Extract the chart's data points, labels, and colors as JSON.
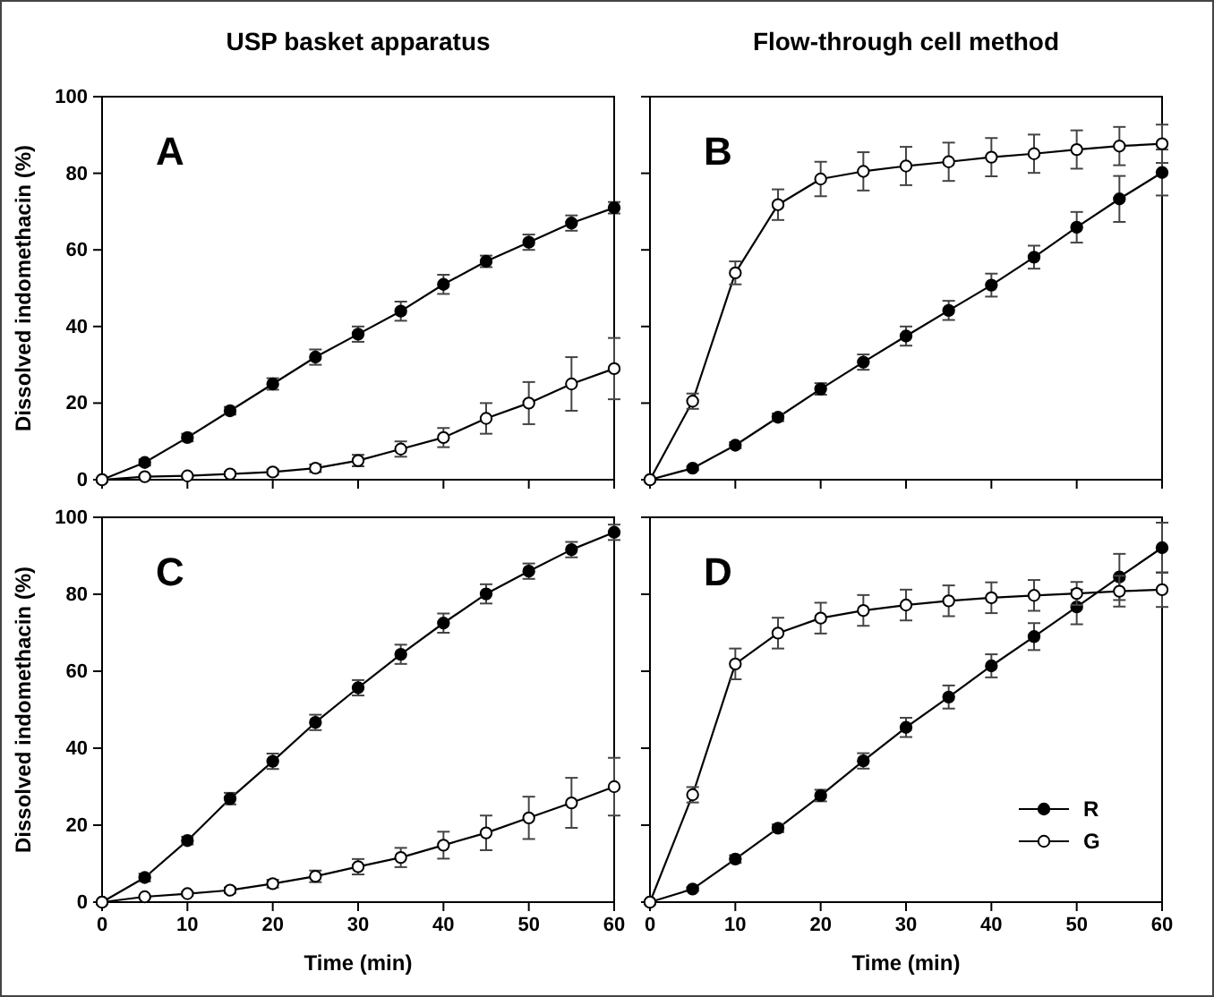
{
  "chart_data": [
    {
      "type": "line",
      "title": "USP basket apparatus",
      "ylabel": "Dissolved indomethacin (%)",
      "annotations": [
        "A"
      ],
      "x": [
        0,
        5,
        10,
        15,
        20,
        25,
        30,
        35,
        40,
        45,
        50,
        55,
        60
      ],
      "xlim": [
        0,
        60
      ],
      "xticks": [
        0,
        10,
        20,
        30,
        40,
        50,
        60
      ],
      "ylim": [
        0,
        100
      ],
      "yticks": [
        0,
        20,
        40,
        60,
        80,
        100
      ],
      "tick_labels": "y",
      "marker": "circle",
      "line_style": "solid",
      "series": [
        {
          "color": "#000000",
          "values": [
            0,
            4.5,
            11,
            18,
            25,
            32,
            38,
            44,
            51,
            57,
            62,
            67,
            71
          ],
          "errors": [
            0,
            0.8,
            1,
            1,
            1.5,
            2,
            2,
            2.5,
            2.5,
            1.5,
            2,
            2,
            1.5
          ]
        },
        {
          "color": "#ffffff",
          "values": [
            0,
            0.8,
            1,
            1.5,
            2,
            3,
            5,
            8,
            11,
            16,
            20,
            25,
            29
          ],
          "errors": [
            0,
            0.3,
            0.3,
            0.5,
            0.7,
            1,
            1.5,
            2,
            2.5,
            4,
            5.5,
            7,
            8
          ]
        }
      ]
    },
    {
      "type": "line",
      "title": "Flow-through cell method",
      "annotations": [
        "B"
      ],
      "x": [
        0,
        5,
        10,
        15,
        20,
        25,
        30,
        35,
        40,
        45,
        50,
        55,
        60
      ],
      "xlim": [
        0,
        60
      ],
      "xticks": [
        0,
        10,
        20,
        30,
        40,
        50,
        60
      ],
      "ylim": [
        0,
        100
      ],
      "yticks": [
        0,
        20,
        40,
        60,
        80,
        100
      ],
      "tick_labels": false,
      "marker": "circle",
      "line_style": "solid",
      "series": [
        {
          "color": "#000000",
          "values": [
            0,
            3,
            9,
            16.3,
            23.7,
            30.7,
            37.5,
            44.2,
            50.8,
            58.1,
            65.9,
            73.3,
            80.2
          ],
          "errors": [
            0,
            0.5,
            0.8,
            1,
            1.5,
            2,
            2.5,
            2.5,
            3,
            3,
            4,
            6,
            6
          ]
        },
        {
          "color": "#ffffff",
          "values": [
            0,
            20.5,
            54,
            71.8,
            78.5,
            80.5,
            81.9,
            83,
            84.2,
            85.1,
            86.2,
            87.1,
            87.7
          ],
          "errors": [
            0,
            2,
            3,
            4,
            4.5,
            5,
            5,
            5,
            5,
            5,
            5,
            5,
            5
          ]
        }
      ]
    },
    {
      "type": "line",
      "xlabel": "Time (min)",
      "ylabel": "Dissolved indomethacin (%)",
      "annotations": [
        "C"
      ],
      "x": [
        0,
        5,
        10,
        15,
        20,
        25,
        30,
        35,
        40,
        45,
        50,
        55,
        60
      ],
      "xlim": [
        0,
        60
      ],
      "xticks": [
        0,
        10,
        20,
        30,
        40,
        50,
        60
      ],
      "ylim": [
        0,
        100
      ],
      "yticks": [
        0,
        20,
        40,
        60,
        80,
        100
      ],
      "marker": "circle",
      "line_style": "solid",
      "series": [
        {
          "color": "#000000",
          "values": [
            0,
            6.4,
            16,
            26.9,
            36.6,
            46.7,
            55.7,
            64.4,
            72.5,
            80.1,
            86,
            91.6,
            96.1
          ],
          "errors": [
            0,
            1,
            1,
            1.5,
            2,
            2,
            2,
            2.5,
            2.5,
            2.5,
            2,
            2,
            2
          ]
        },
        {
          "color": "#ffffff",
          "values": [
            0,
            1.4,
            2.2,
            3.1,
            4.8,
            6.7,
            9.2,
            11.6,
            14.8,
            18,
            21.9,
            25.8,
            30
          ],
          "errors": [
            0,
            0.3,
            0.5,
            0.7,
            1,
            1.5,
            2,
            2.5,
            3.5,
            4.5,
            5.5,
            6.5,
            7.5
          ]
        }
      ]
    },
    {
      "type": "line",
      "xlabel": "Time (min)",
      "annotations": [
        "D"
      ],
      "x": [
        0,
        5,
        10,
        15,
        20,
        25,
        30,
        35,
        40,
        45,
        50,
        55,
        60
      ],
      "xlim": [
        0,
        60
      ],
      "xticks": [
        0,
        10,
        20,
        30,
        40,
        50,
        60
      ],
      "ylim": [
        0,
        100
      ],
      "yticks": [
        0,
        20,
        40,
        60,
        80,
        100
      ],
      "tick_labels": "x",
      "marker": "circle",
      "line_style": "solid",
      "legend": "bottom right",
      "series": [
        {
          "name": "R",
          "color": "#000000",
          "values": [
            0,
            3.4,
            11.2,
            19.2,
            27.7,
            36.7,
            45.4,
            53.3,
            61.4,
            69,
            76.7,
            84.5,
            92.1
          ],
          "errors": [
            0,
            0.5,
            1,
            1,
            1.5,
            2,
            2.5,
            3,
            3,
            3.5,
            4.5,
            6,
            6.5
          ]
        },
        {
          "name": "G",
          "color": "#ffffff",
          "values": [
            0,
            27.9,
            61.9,
            69.9,
            73.8,
            75.8,
            77.2,
            78.3,
            79.1,
            79.7,
            80.2,
            80.8,
            81.2
          ],
          "errors": [
            0,
            2,
            4,
            4,
            4,
            4,
            4,
            4,
            4,
            4,
            3,
            4,
            4.5
          ]
        }
      ]
    }
  ]
}
